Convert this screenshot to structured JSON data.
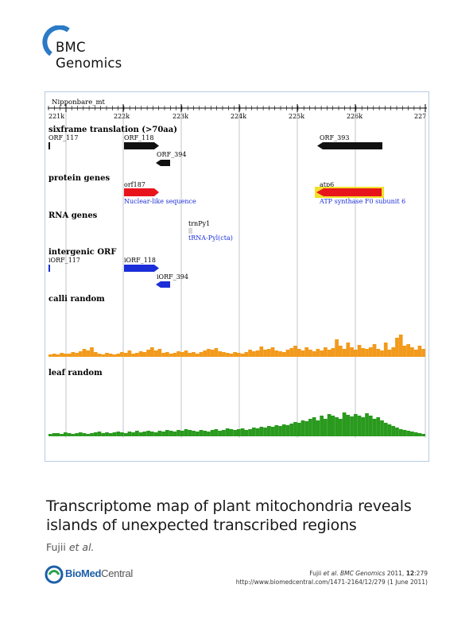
{
  "journal": {
    "line1": "BMC",
    "line2": "Genomics",
    "arc_color": "#2a7ac7"
  },
  "figure": {
    "track_label": "Nipponbare_mt",
    "ticks": [
      "221k",
      "222k",
      "223k",
      "224k",
      "225k",
      "226k",
      "227"
    ],
    "sections": {
      "sixframe": "sixframe translation (>70aa)",
      "protein": "protein genes",
      "rna": "RNA genes",
      "intergenic": "intergenic ORF",
      "calli": "calli random",
      "leaf": "leaf random"
    },
    "features": {
      "orf117": "ORF_117",
      "orf118": "ORF_118",
      "orf393": "ORF_393",
      "orf394": "ORF_394",
      "orf187": "orf187",
      "orf187_note": "Nuclear-like sequence",
      "atp6": "atp6",
      "atp6_note": "ATP synthase F0 subunit 6",
      "trnpy1": "trnPy1",
      "trnpy1_note": "tRNA-Pyl(cta)",
      "iorf117": "iORF_117",
      "iorf118": "iORF_118",
      "iorf394": "iORF_394"
    },
    "colors": {
      "protein": "#e8141c",
      "highlight": "#f2e02a",
      "intergenic": "#1b2ed8",
      "calli": "#f29a1c",
      "leaf": "#2a9a1e",
      "orf": "#111111"
    }
  },
  "title": {
    "line1": "Transcriptome map of plant mitochondria reveals",
    "line2": "islands of unexpected transcribed regions"
  },
  "authors": {
    "name": "Fujii",
    "etal": "et al."
  },
  "footer": {
    "logo_bio": "BioMed",
    "logo_central": "Central",
    "citation_author": "Fujii",
    "citation_etal": "et al.",
    "citation_journal": "BMC Genomics",
    "citation_year": "2011,",
    "citation_volume": "12",
    "citation_page": ":279",
    "citation_url": "http://www.biomedcentral.com/1471-2164/12/279 (1 June 2011)"
  }
}
